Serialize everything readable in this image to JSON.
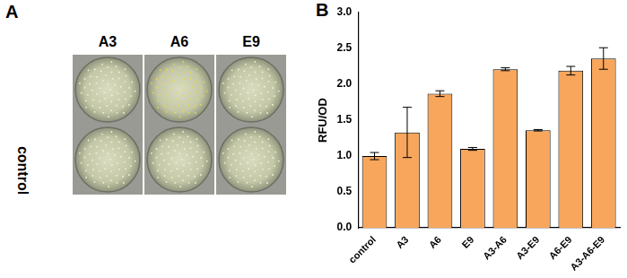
{
  "figure": {
    "panel_labels": [
      "A",
      "B"
    ],
    "plates": {
      "column_labels": [
        "A3",
        "A6",
        "E9"
      ],
      "row_label": "control"
    }
  },
  "chart_data": {
    "type": "bar",
    "y_label": "RFU/OD",
    "categories": [
      "control",
      "A3",
      "A6",
      "E9",
      "A3-A6",
      "A3-E9",
      "A6-E9",
      "A3-A6-E9"
    ],
    "values": [
      1.0,
      1.33,
      1.87,
      1.1,
      2.21,
      1.36,
      2.19,
      2.36
    ],
    "errors": [
      0.05,
      0.35,
      0.04,
      0.02,
      0.02,
      0.01,
      0.06,
      0.15
    ],
    "color": "#f8a65c",
    "ylim": [
      0,
      3
    ],
    "yticks": [
      {
        "value": 0,
        "label": "0.0"
      },
      0.5,
      {
        "value": 1,
        "label": "1.0"
      },
      1.5,
      {
        "value": 2,
        "label": "2.0"
      },
      2.5,
      {
        "value": 3,
        "label": "3.0"
      }
    ],
    "grid": false
  }
}
